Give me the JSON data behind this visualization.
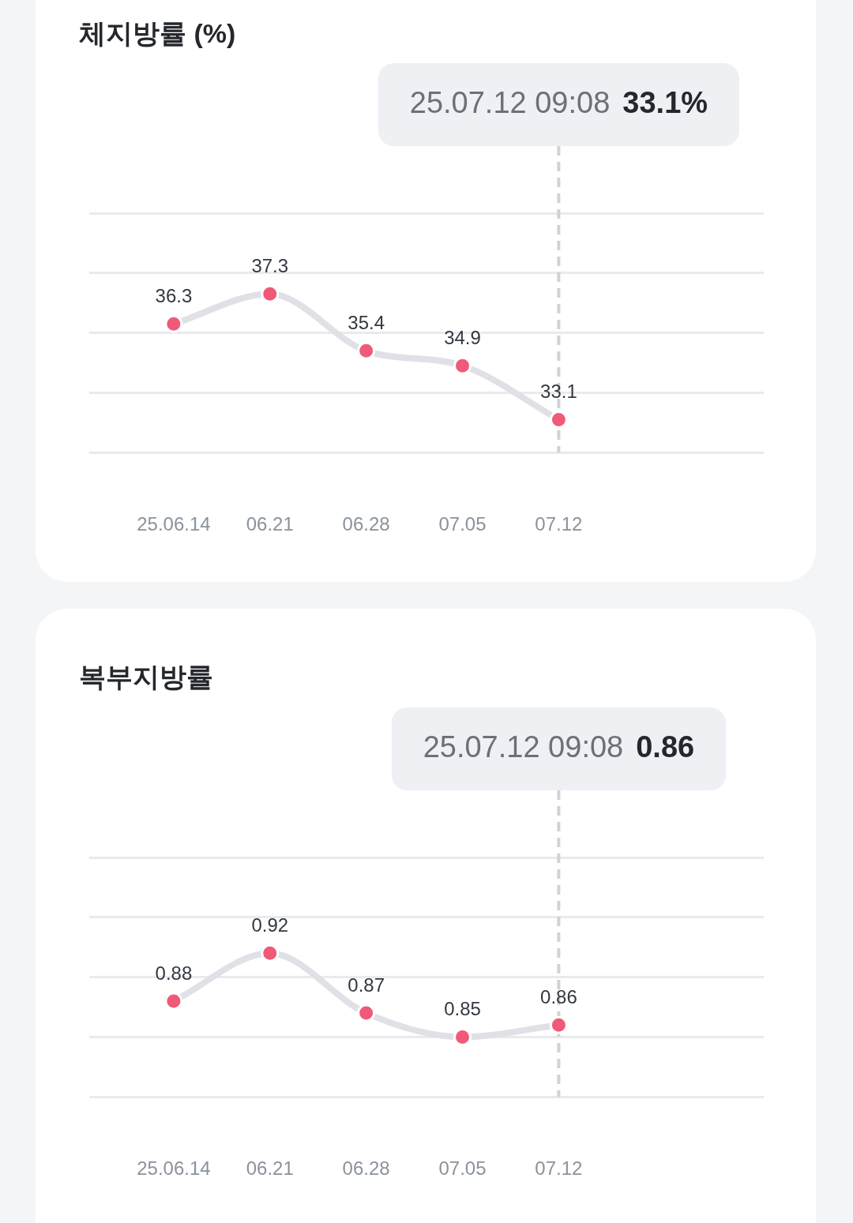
{
  "chart_data": [
    {
      "type": "line",
      "title": "체지방률 (%)",
      "categories": [
        "25.06.14",
        "06.21",
        "06.28",
        "07.05",
        "07.12"
      ],
      "series": [
        {
          "color": "#dfe1e6",
          "colors": [
            "#f05a78",
            "#f05a78",
            "#f05a78",
            "#f05a78",
            "#f05a78"
          ],
          "values": [
            36.3,
            37.3,
            35.4,
            34.9,
            33.1
          ]
        }
      ],
      "ylim": [
        32,
        40
      ],
      "yticks": [
        {
          "value": 32,
          "label": null
        },
        {
          "value": 34,
          "label": null
        },
        {
          "value": 36,
          "label": null
        },
        {
          "value": 38,
          "label": null
        },
        {
          "value": 40,
          "label": null
        }
      ],
      "grid": "y",
      "tick_labels": "x",
      "data_labels": true,
      "marker": "circle",
      "legend": false,
      "ref_lines": [
        {
          "axis": "x",
          "value": "07.12",
          "label": "25.07.12 09:08 33.1%",
          "color": "#cfd2d6",
          "line_style": "dashed"
        }
      ]
    },
    {
      "type": "line",
      "title": "복부지방률",
      "categories": [
        "25.06.14",
        "06.21",
        "06.28",
        "07.05",
        "07.12"
      ],
      "series": [
        {
          "color": "#dfe1e6",
          "colors": [
            "#f05a78",
            "#f05a78",
            "#f05a78",
            "#f05a78",
            "#f05a78"
          ],
          "values": [
            0.88,
            0.92,
            0.87,
            0.85,
            0.86
          ]
        }
      ],
      "ylim": [
        0.8,
        1.0
      ],
      "yticks": [
        {
          "value": 0.8,
          "label": null
        },
        {
          "value": 0.85,
          "label": null
        },
        {
          "value": 0.9,
          "label": null
        },
        {
          "value": 0.95,
          "label": null
        },
        {
          "value": 1.0,
          "label": null
        }
      ],
      "grid": "y",
      "tick_labels": "x",
      "data_labels": true,
      "marker": "circle",
      "legend": false,
      "ref_lines": [
        {
          "axis": "x",
          "value": "07.12",
          "label": "25.07.12 09:08 0.86",
          "color": "#cfd2d6",
          "line_style": "dashed"
        }
      ]
    }
  ]
}
